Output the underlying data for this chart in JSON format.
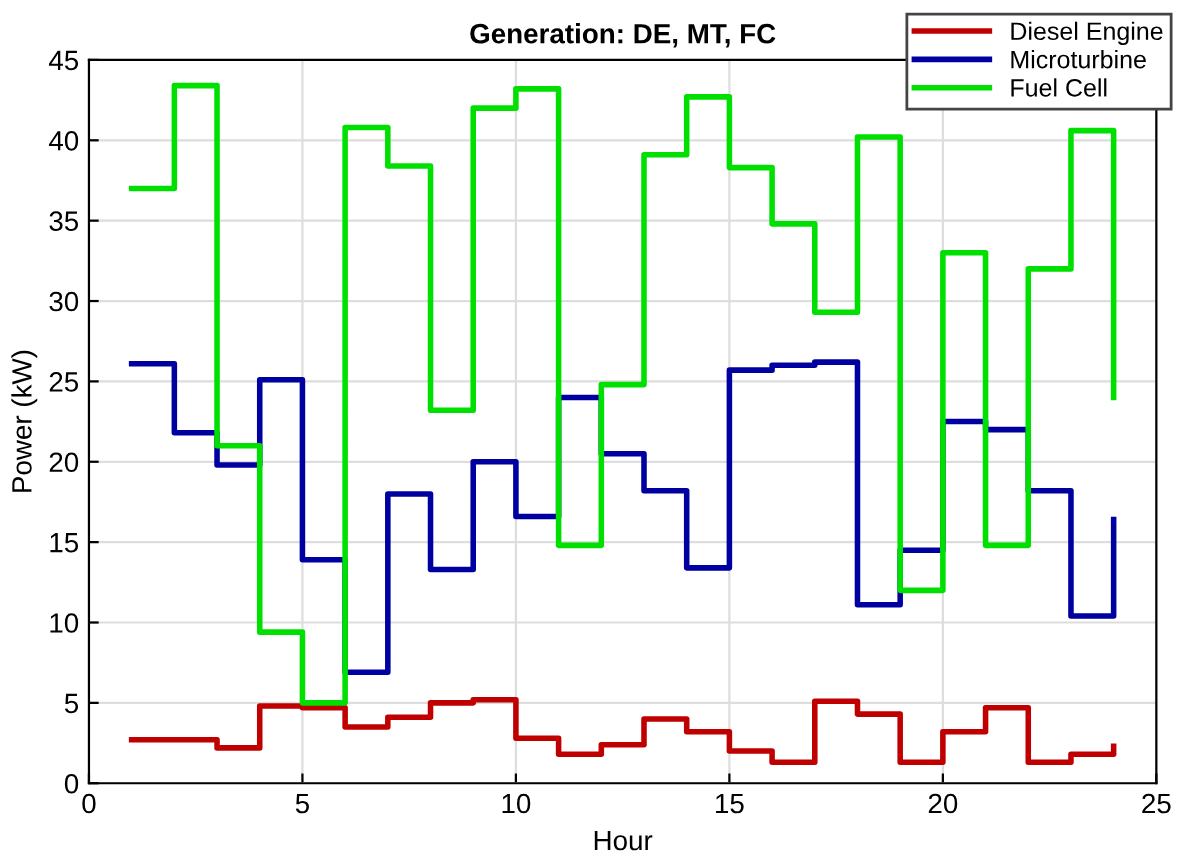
{
  "chart_data": {
    "type": "step",
    "title": "Generation: DE, MT, FC",
    "xlabel": "Hour",
    "ylabel": "Power (kW)",
    "x": [
      1,
      2,
      3,
      4,
      5,
      6,
      7,
      8,
      9,
      10,
      11,
      12,
      13,
      14,
      15,
      16,
      17,
      18,
      19,
      20,
      21,
      22,
      23,
      24
    ],
    "series": [
      {
        "name": "Diesel Engine",
        "color": "#c00000",
        "values": [
          2.7,
          2.7,
          2.2,
          4.8,
          4.7,
          3.5,
          4.1,
          5,
          5.2,
          2.8,
          1.8,
          2.4,
          4,
          3.2,
          2,
          1.3,
          5.1,
          4.3,
          1.3,
          3.2,
          4.7,
          1.3,
          1.8,
          2.3
        ]
      },
      {
        "name": "Microturbine",
        "color": "#0000a0",
        "values": [
          26.1,
          21.8,
          19.8,
          25.1,
          13.9,
          6.9,
          18,
          13.3,
          20,
          16.6,
          24,
          20.5,
          18.2,
          13.4,
          25.7,
          26,
          26.2,
          11.1,
          14.5,
          22.5,
          22,
          18.2,
          10.4,
          16.4
        ]
      },
      {
        "name": "Fuel Cell",
        "color": "#00e000",
        "values": [
          37,
          43.4,
          21,
          9.4,
          5,
          40.8,
          38.4,
          23.2,
          42,
          43.2,
          14.8,
          24.8,
          39.1,
          42.7,
          38.3,
          34.8,
          29.3,
          40.2,
          12,
          33,
          14.8,
          32,
          40.6,
          24
        ]
      }
    ],
    "xlim": [
      0,
      25
    ],
    "xticks": [
      0,
      5,
      10,
      15,
      20,
      25
    ],
    "ylim": [
      0,
      45
    ],
    "yticks": [
      0,
      5,
      10,
      15,
      20,
      25,
      30,
      35,
      40,
      45
    ],
    "grid": true,
    "legend": "top right",
    "line_style": "solid",
    "marker": "none"
  }
}
